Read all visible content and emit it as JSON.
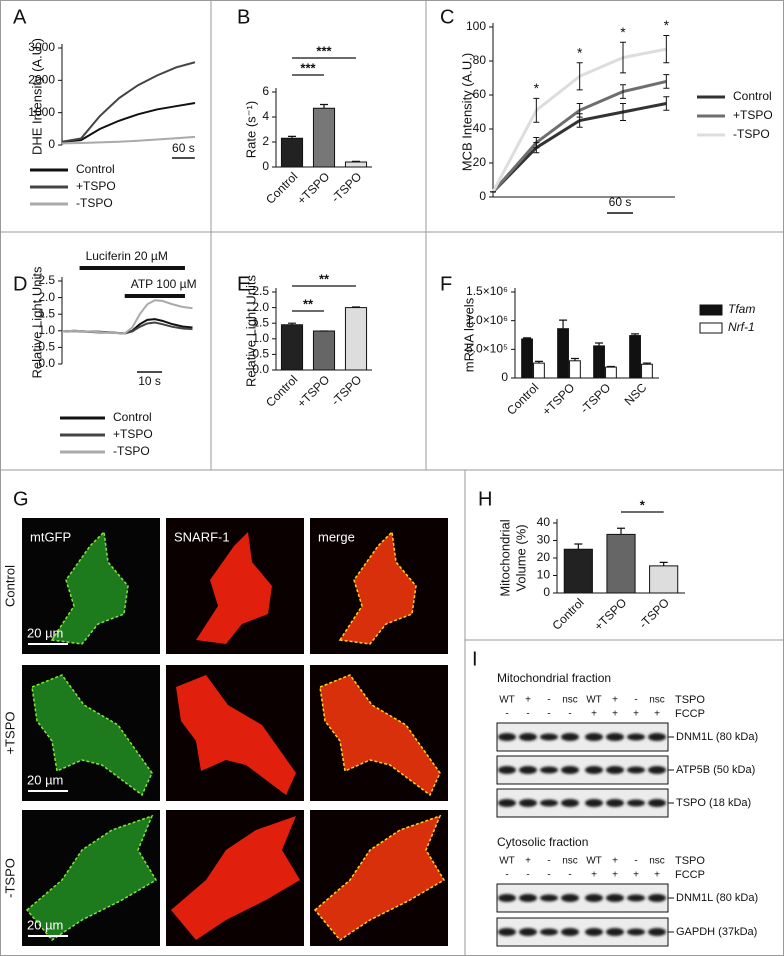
{
  "chart_data": [
    {
      "panel": "A",
      "type": "line",
      "ylabel": [
        "DHE Intensity (A.U.)"
      ],
      "x": [
        0,
        50,
        100,
        150,
        200,
        250,
        300,
        350
      ],
      "xlim": [
        0,
        350
      ],
      "ylim": [
        0,
        3000
      ],
      "yticks": [
        0,
        1000,
        2000,
        3000
      ],
      "series": [
        {
          "name": "Control",
          "color": "#111111",
          "values": [
            100,
            150,
            500,
            750,
            950,
            1100,
            1200,
            1300
          ]
        },
        {
          "name": "+TSPO",
          "color": "#444444",
          "values": [
            100,
            200,
            900,
            1450,
            1850,
            2150,
            2400,
            2560
          ]
        },
        {
          "name": "-TSPO",
          "color": "#aaaaaa",
          "values": [
            50,
            60,
            80,
            100,
            130,
            170,
            210,
            250
          ]
        }
      ],
      "scale_bar": {
        "label": "60 s",
        "length": 60
      }
    },
    {
      "panel": "B",
      "type": "bar",
      "ylabel": [
        "Rate (s⁻¹)"
      ],
      "categories": [
        "Control",
        "+TSPO",
        "-TSPO"
      ],
      "values": [
        2.3,
        4.7,
        0.4
      ],
      "errors": [
        0.15,
        0.3,
        0.05
      ],
      "colors": [
        "#222222",
        "#777777",
        "#e0e0e0"
      ],
      "ylim": [
        0,
        6
      ],
      "yticks": [
        0,
        2,
        4,
        6
      ],
      "significance": [
        {
          "label": "***",
          "pair": [
            0,
            1
          ]
        },
        {
          "label": "***",
          "pair": [
            0,
            2
          ]
        }
      ]
    },
    {
      "panel": "C",
      "type": "line",
      "ylabel": [
        "MCB Intensity (A.U.)"
      ],
      "x": [
        0,
        100,
        200,
        300,
        400
      ],
      "xlim": [
        0,
        420
      ],
      "ylim": [
        0,
        100
      ],
      "yticks": [
        0,
        20,
        40,
        60,
        80,
        100
      ],
      "series": [
        {
          "name": "Control",
          "color": "#333333",
          "values": [
            3,
            29,
            45,
            50,
            55
          ],
          "errors": [
            0,
            3,
            4,
            5,
            4
          ]
        },
        {
          "name": "+TSPO",
          "color": "#6e6e6e",
          "values": [
            3,
            32,
            51,
            62,
            68
          ],
          "errors": [
            0,
            3,
            4,
            4,
            4
          ]
        },
        {
          "name": "-TSPO",
          "color": "#dddddd",
          "values": [
            3,
            51,
            71,
            82,
            87
          ],
          "errors": [
            0,
            7,
            8,
            9,
            8
          ]
        }
      ],
      "significance": [
        {
          "label": "*",
          "index": 1
        },
        {
          "label": "*",
          "index": 2
        },
        {
          "label": "*",
          "index": 3
        },
        {
          "label": "*",
          "index": 4
        }
      ],
      "scale_bar": {
        "label": "60 s",
        "length": 60
      }
    },
    {
      "panel": "D",
      "type": "line",
      "ylabel": [
        "Relative Light Units"
      ],
      "x": [
        0,
        5,
        10,
        15,
        20,
        25,
        28,
        31,
        34,
        37,
        40,
        44,
        48,
        52
      ],
      "xlim": [
        0,
        53
      ],
      "ylim": [
        0,
        2.5
      ],
      "yticks": [
        {
          "value": 0,
          "label": "0.0"
        },
        0.5,
        {
          "value": 1,
          "label": "1.0"
        },
        1.5,
        {
          "value": 2,
          "label": "2.0"
        },
        2.5
      ],
      "series": [
        {
          "name": "Control",
          "color": "#111111",
          "values": [
            0.98,
            1.0,
            0.98,
            0.97,
            0.95,
            0.92,
            1.0,
            1.2,
            1.33,
            1.35,
            1.3,
            1.2,
            1.13,
            1.1
          ]
        },
        {
          "name": "+TSPO",
          "color": "#444444",
          "values": [
            0.98,
            0.99,
            0.97,
            0.95,
            0.94,
            0.92,
            0.98,
            1.12,
            1.22,
            1.25,
            1.2,
            1.12,
            1.07,
            1.05
          ]
        },
        {
          "name": "-TSPO",
          "color": "#aaaaaa",
          "values": [
            0.98,
            1.0,
            0.98,
            0.96,
            0.94,
            0.92,
            1.1,
            1.5,
            1.8,
            1.92,
            1.9,
            1.8,
            1.72,
            1.68
          ]
        }
      ],
      "treatments": [
        {
          "label": "Luciferin 20 µM",
          "start": 7,
          "end": 49
        },
        {
          "label": "ATP 100 µM",
          "start": 25,
          "end": 49
        }
      ],
      "scale_bar": {
        "label": "10 s",
        "length": 10
      }
    },
    {
      "panel": "E",
      "type": "bar",
      "ylabel": [
        "Relative Light Units"
      ],
      "categories": [
        "Control",
        "+TSPO",
        "-TSPO"
      ],
      "values": [
        1.45,
        1.25,
        2.0
      ],
      "errors": [
        0.05,
        0,
        0.02
      ],
      "colors": [
        "#222222",
        "#666666",
        "#dddddd"
      ],
      "ylim": [
        0,
        2.5
      ],
      "yticks": [
        {
          "value": 0,
          "label": "0.0"
        },
        0.5,
        {
          "value": 1,
          "label": "1.0"
        },
        1.5,
        {
          "value": 2,
          "label": "2.0"
        },
        2.5
      ],
      "significance": [
        {
          "label": "**",
          "pair": [
            0,
            1
          ]
        },
        {
          "label": "**",
          "pair": [
            0,
            2
          ]
        }
      ]
    },
    {
      "panel": "F",
      "type": "bar",
      "ylabel": [
        "mRNA levels"
      ],
      "categories": [
        "Control",
        "+TSPO",
        "-TSPO",
        "NSC"
      ],
      "ylim": [
        0,
        1500000
      ],
      "yticks": [
        0,
        {
          "value": 500000,
          "label": "5.0×10⁵"
        },
        {
          "value": 1000000,
          "label": "1.0×10⁶"
        },
        {
          "value": 1500000,
          "label": "1.5×10⁶"
        }
      ],
      "series": [
        {
          "name": "Tfam",
          "color": "#111111",
          "values": [
            680000,
            860000,
            560000,
            740000
          ],
          "errors": [
            20000,
            150000,
            50000,
            30000
          ]
        },
        {
          "name": "Nrf-1",
          "color": "#ffffff",
          "values": [
            260000,
            300000,
            190000,
            240000
          ],
          "errors": [
            30000,
            40000,
            10000,
            20000
          ]
        }
      ]
    },
    {
      "panel": "H",
      "type": "bar",
      "ylabel": [
        "Mitochondrial",
        "Volume (%)"
      ],
      "categories": [
        "Control",
        "+TSPO",
        "-TSPO"
      ],
      "values": [
        25,
        33.5,
        15.5
      ],
      "errors": [
        3,
        3.5,
        2
      ],
      "colors": [
        "#222222",
        "#666666",
        "#dddddd"
      ],
      "ylim": [
        0,
        40
      ],
      "yticks": [
        0,
        10,
        20,
        30,
        40
      ],
      "significance": [
        {
          "label": "*",
          "pair": [
            1,
            2
          ]
        }
      ]
    }
  ],
  "panels": {
    "G": {
      "panel": "G",
      "columns": [
        "mtGFP",
        "SNARF-1",
        "merge"
      ],
      "rows": [
        "Control",
        "+TSPO",
        "-TSPO"
      ],
      "scale_bar": "20 µm"
    },
    "I": {
      "panel": "I",
      "row_labels": [
        "TSPO",
        "FCCP"
      ],
      "fractions": [
        {
          "title": "Mitochondrial fraction",
          "tspo": [
            "WT",
            "+",
            "-",
            "nsc",
            "WT",
            "+",
            "-",
            "nsc"
          ],
          "fccp": [
            "-",
            "-",
            "-",
            "-",
            "+",
            "+",
            "+",
            "+"
          ],
          "blots": [
            "DNM1L (80 kDa)",
            "ATP5B (50 kDa)",
            "TSPO (18 kDa)"
          ]
        },
        {
          "title": "Cytosolic fraction",
          "tspo": [
            "WT",
            "+",
            "-",
            "nsc",
            "WT",
            "+",
            "-",
            "nsc"
          ],
          "fccp": [
            "-",
            "-",
            "-",
            "-",
            "+",
            "+",
            "+",
            "+"
          ],
          "blots": [
            "DNM1L (80 kDa)",
            "GAPDH (37kDa)"
          ]
        }
      ]
    }
  }
}
